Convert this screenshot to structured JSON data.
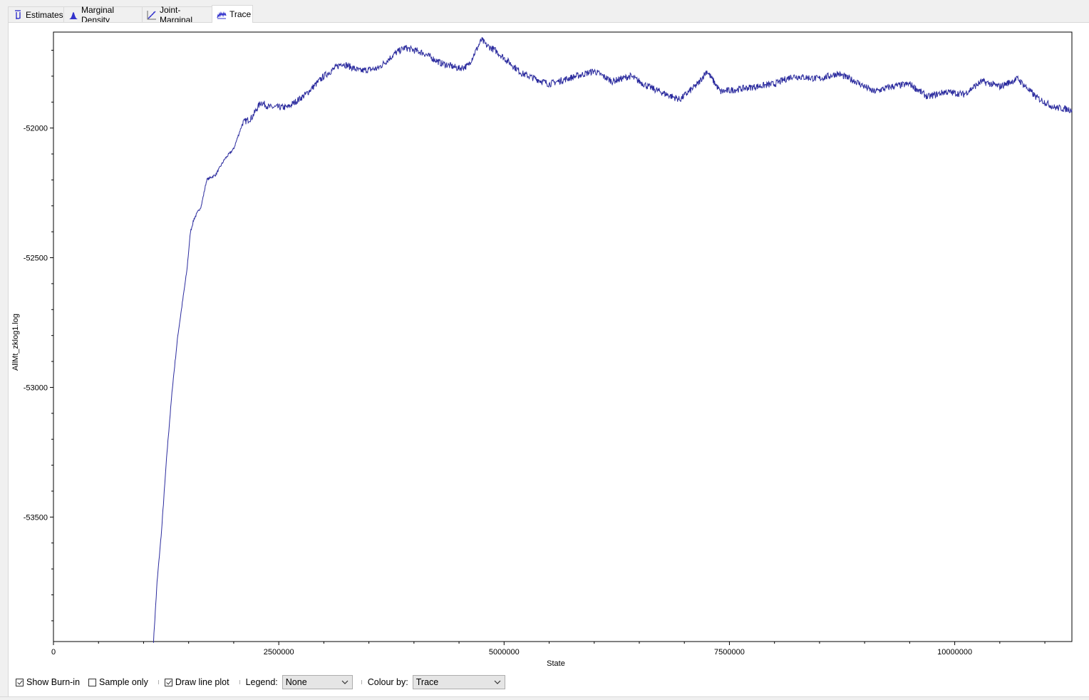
{
  "tabs": [
    {
      "label": "Estimates",
      "icon": "mu-icon"
    },
    {
      "label": "Marginal Density",
      "icon": "density-icon"
    },
    {
      "label": "Joint-Marginal",
      "icon": "joint-marginal-icon"
    },
    {
      "label": "Trace",
      "icon": "trace-icon",
      "active": true
    }
  ],
  "controls": {
    "show_burnin": {
      "label": "Show Burn-in",
      "checked": true
    },
    "sample_only": {
      "label": "Sample only",
      "checked": false
    },
    "draw_line_plot": {
      "label": "Draw line plot",
      "checked": true
    },
    "legend_label": "Legend:",
    "legend_value": "None",
    "colour_by_label": "Colour by:",
    "colour_by_value": "Trace"
  },
  "colors": {
    "trace": "#2b2b9e",
    "axis": "#000000",
    "tab_icon": "#3333cc"
  },
  "chart_data": {
    "type": "line",
    "xlabel": "State",
    "ylabel": "AllMt_zklog1.log",
    "xlim": [
      0,
      11300000
    ],
    "ylim": [
      -53980,
      -51630
    ],
    "x_ticks": [
      0,
      2500000,
      5000000,
      7500000,
      10000000
    ],
    "x_tick_labels": [
      "0",
      "2500000",
      "5000000",
      "7500000",
      "10000000"
    ],
    "y_ticks": [
      -52000,
      -52500,
      -53000,
      -53500
    ],
    "y_tick_labels": [
      "-52000",
      "-52500",
      "-53000",
      "-53500"
    ],
    "grid": false,
    "legend": "none",
    "series": [
      {
        "x": [
          1110000,
          1150000,
          1200000,
          1260000,
          1320000,
          1380000,
          1420000,
          1480000,
          1520000,
          1560000,
          1640000,
          1700000,
          1800000,
          1900000,
          2000000,
          2100000,
          2200000,
          2300000,
          2400000,
          2600000,
          2800000,
          3000000,
          3200000,
          3400000,
          3600000,
          3800000,
          3900000,
          4100000,
          4300000,
          4500000,
          4600000,
          4750000,
          4800000,
          4900000,
          5000000,
          5200000,
          5500000,
          5800000,
          6000000,
          6200000,
          6400000,
          6600000,
          6800000,
          6950000,
          7150000,
          7250000,
          7400000,
          7600000,
          7800000,
          8000000,
          8200000,
          8500000,
          8700000,
          8900000,
          9100000,
          9300000,
          9500000,
          9700000,
          9900000,
          10100000,
          10300000,
          10500000,
          10700000,
          10900000,
          11100000,
          11300000
        ],
        "y": [
          -53980,
          -53750,
          -53550,
          -53250,
          -53000,
          -52800,
          -52700,
          -52550,
          -52400,
          -52350,
          -52300,
          -52200,
          -52180,
          -52120,
          -52080,
          -51980,
          -51960,
          -51900,
          -51920,
          -51920,
          -51870,
          -51800,
          -51750,
          -51780,
          -51770,
          -51710,
          -51690,
          -51710,
          -51750,
          -51770,
          -51760,
          -51660,
          -51680,
          -51700,
          -51730,
          -51790,
          -51830,
          -51800,
          -51780,
          -51820,
          -51800,
          -51840,
          -51870,
          -51890,
          -51830,
          -51780,
          -51860,
          -51850,
          -51840,
          -51830,
          -51800,
          -51810,
          -51790,
          -51820,
          -51860,
          -51840,
          -51830,
          -51880,
          -51860,
          -51870,
          -51820,
          -51840,
          -51810,
          -51880,
          -51920,
          -51930
        ]
      }
    ]
  }
}
